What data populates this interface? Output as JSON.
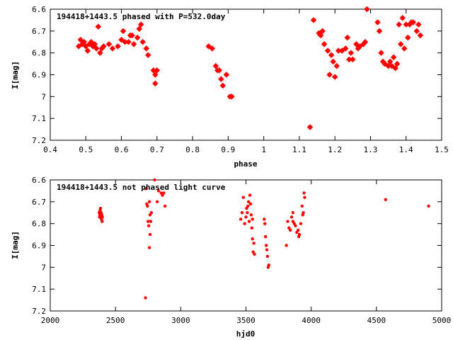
{
  "chart_data": [
    {
      "type": "scatter",
      "title": "194418+1443.5 phased with P=532.0day",
      "xlabel": "phase",
      "ylabel": "I[mag]",
      "xlim": [
        0.4,
        1.5
      ],
      "ylim": [
        6.6,
        7.2
      ],
      "y_inverted": true,
      "grid": false,
      "marker_color": "#ff0000",
      "xticks": [
        "0.4",
        "0.5",
        "0.6",
        "0.7",
        "0.8",
        "0.9",
        "1",
        "1.1",
        "1.2",
        "1.3",
        "1.4",
        "1.5"
      ],
      "yticks": [
        "6.6",
        "6.7",
        "6.8",
        "6.9",
        "7",
        "7.1",
        "7.2"
      ],
      "series": [
        {
          "points": [
            [
              0.48,
              6.77
            ],
            [
              0.485,
              6.74
            ],
            [
              0.49,
              6.76
            ],
            [
              0.495,
              6.75
            ],
            [
              0.5,
              6.77
            ],
            [
              0.505,
              6.79
            ],
            [
              0.51,
              6.76
            ],
            [
              0.515,
              6.75
            ],
            [
              0.52,
              6.77
            ],
            [
              0.525,
              6.76
            ],
            [
              0.53,
              6.78
            ],
            [
              0.535,
              6.68
            ],
            [
              0.54,
              6.8
            ],
            [
              0.545,
              6.78
            ],
            [
              0.55,
              6.77
            ],
            [
              0.565,
              6.76
            ],
            [
              0.575,
              6.78
            ],
            [
              0.59,
              6.77
            ],
            [
              0.6,
              6.74
            ],
            [
              0.605,
              6.7
            ],
            [
              0.61,
              6.75
            ],
            [
              0.62,
              6.75
            ],
            [
              0.625,
              6.72
            ],
            [
              0.63,
              6.72
            ],
            [
              0.635,
              6.76
            ],
            [
              0.645,
              6.73
            ],
            [
              0.65,
              6.69
            ],
            [
              0.655,
              6.67
            ],
            [
              0.66,
              6.75
            ],
            [
              0.67,
              6.78
            ],
            [
              0.675,
              6.81
            ],
            [
              0.69,
              6.88
            ],
            [
              0.695,
              6.9
            ],
            [
              0.7,
              6.88
            ],
            [
              0.695,
              6.94
            ],
            [
              0.845,
              6.77
            ],
            [
              0.855,
              6.78
            ],
            [
              0.865,
              6.86
            ],
            [
              0.87,
              6.88
            ],
            [
              0.875,
              6.88
            ],
            [
              0.88,
              6.92
            ],
            [
              0.885,
              6.95
            ],
            [
              0.895,
              6.9
            ],
            [
              0.905,
              7.0
            ],
            [
              0.91,
              7.0
            ],
            [
              1.13,
              7.14
            ],
            [
              1.14,
              6.65
            ],
            [
              1.155,
              6.71
            ],
            [
              1.16,
              6.72
            ],
            [
              1.165,
              6.7
            ],
            [
              1.17,
              6.76
            ],
            [
              1.18,
              6.79
            ],
            [
              1.185,
              6.9
            ],
            [
              1.19,
              6.81
            ],
            [
              1.195,
              6.84
            ],
            [
              1.2,
              6.91
            ],
            [
              1.205,
              6.86
            ],
            [
              1.21,
              6.79
            ],
            [
              1.22,
              6.79
            ],
            [
              1.23,
              6.78
            ],
            [
              1.235,
              6.73
            ],
            [
              1.24,
              6.83
            ],
            [
              1.245,
              6.8
            ],
            [
              1.25,
              6.83
            ],
            [
              1.26,
              6.76
            ],
            [
              1.265,
              6.78
            ],
            [
              1.27,
              6.77
            ],
            [
              1.28,
              6.76
            ],
            [
              1.285,
              6.75
            ],
            [
              1.29,
              6.6
            ],
            [
              1.32,
              6.66
            ],
            [
              1.325,
              6.7
            ],
            [
              1.33,
              6.8
            ],
            [
              1.335,
              6.84
            ],
            [
              1.34,
              6.85
            ],
            [
              1.35,
              6.86
            ],
            [
              1.355,
              6.84
            ],
            [
              1.36,
              6.86
            ],
            [
              1.365,
              6.82
            ],
            [
              1.37,
              6.87
            ],
            [
              1.375,
              6.85
            ],
            [
              1.38,
              6.67
            ],
            [
              1.385,
              6.76
            ],
            [
              1.39,
              6.64
            ],
            [
              1.395,
              6.78
            ],
            [
              1.4,
              6.67
            ],
            [
              1.405,
              6.73
            ],
            [
              1.41,
              6.67
            ],
            [
              1.415,
              6.66
            ],
            [
              1.42,
              6.66
            ],
            [
              1.43,
              6.7
            ],
            [
              1.435,
              6.67
            ],
            [
              1.44,
              6.72
            ]
          ]
        }
      ]
    },
    {
      "type": "scatter",
      "title": "194418+1443.5 not phased light curve",
      "xlabel": "hjd0",
      "ylabel": "I[mag]",
      "xlim": [
        2000,
        5000
      ],
      "ylim": [
        6.6,
        7.2
      ],
      "y_inverted": true,
      "grid": false,
      "marker_color": "#ff0000",
      "xticks": [
        "2000",
        "2500",
        "3000",
        "3500",
        "4000",
        "4500",
        "5000"
      ],
      "yticks": [
        "6.6",
        "6.7",
        "6.8",
        "6.9",
        "7",
        "7.1",
        "7.2"
      ],
      "series": [
        {
          "points": [
            [
              2380,
              6.76
            ],
            [
              2382,
              6.74
            ],
            [
              2385,
              6.73
            ],
            [
              2388,
              6.77
            ],
            [
              2390,
              6.75
            ],
            [
              2392,
              6.78
            ],
            [
              2395,
              6.76
            ],
            [
              2398,
              6.79
            ],
            [
              2400,
              6.77
            ],
            [
              2375,
              6.75
            ],
            [
              2378,
              6.77
            ],
            [
              2730,
              7.14
            ],
            [
              2735,
              6.64
            ],
            [
              2740,
              6.71
            ],
            [
              2745,
              6.72
            ],
            [
              2750,
              6.79
            ],
            [
              2755,
              6.81
            ],
            [
              2760,
              6.91
            ],
            [
              2765,
              6.85
            ],
            [
              2770,
              6.79
            ],
            [
              2775,
              6.75
            ],
            [
              2760,
              6.7
            ],
            [
              2765,
              6.76
            ],
            [
              2800,
              6.6
            ],
            [
              2820,
              6.7
            ],
            [
              2830,
              6.65
            ],
            [
              2850,
              6.66
            ],
            [
              2860,
              6.67
            ],
            [
              2880,
              6.72
            ],
            [
              2870,
              6.66
            ],
            [
              3460,
              6.78
            ],
            [
              3470,
              6.75
            ],
            [
              3480,
              6.68
            ],
            [
              3490,
              6.8
            ],
            [
              3500,
              6.77
            ],
            [
              3505,
              6.73
            ],
            [
              3510,
              6.75
            ],
            [
              3515,
              6.72
            ],
            [
              3520,
              6.7
            ],
            [
              3525,
              6.79
            ],
            [
              3530,
              6.67
            ],
            [
              3535,
              6.71
            ],
            [
              3540,
              6.76
            ],
            [
              3545,
              6.82
            ],
            [
              3550,
              6.78
            ],
            [
              3555,
              6.93
            ],
            [
              3560,
              6.89
            ],
            [
              3565,
              6.94
            ],
            [
              3550,
              6.87
            ],
            [
              3640,
              6.78
            ],
            [
              3650,
              6.86
            ],
            [
              3655,
              6.9
            ],
            [
              3660,
              6.92
            ],
            [
              3665,
              6.95
            ],
            [
              3670,
              7.0
            ],
            [
              3675,
              6.99
            ],
            [
              3645,
              6.8
            ],
            [
              3810,
              6.9
            ],
            [
              3820,
              6.79
            ],
            [
              3830,
              6.82
            ],
            [
              3840,
              6.83
            ],
            [
              3850,
              6.77
            ],
            [
              3860,
              6.75
            ],
            [
              3870,
              6.8
            ],
            [
              3880,
              6.81
            ],
            [
              3890,
              6.84
            ],
            [
              3900,
              6.83
            ],
            [
              3905,
              6.86
            ],
            [
              3910,
              6.85
            ],
            [
              3920,
              6.8
            ],
            [
              3930,
              6.72
            ],
            [
              3940,
              6.75
            ],
            [
              3945,
              6.66
            ],
            [
              3950,
              6.68
            ],
            [
              3935,
              6.76
            ],
            [
              3860,
              6.79
            ],
            [
              4570,
              6.69
            ],
            [
              4900,
              6.72
            ]
          ]
        }
      ]
    }
  ]
}
